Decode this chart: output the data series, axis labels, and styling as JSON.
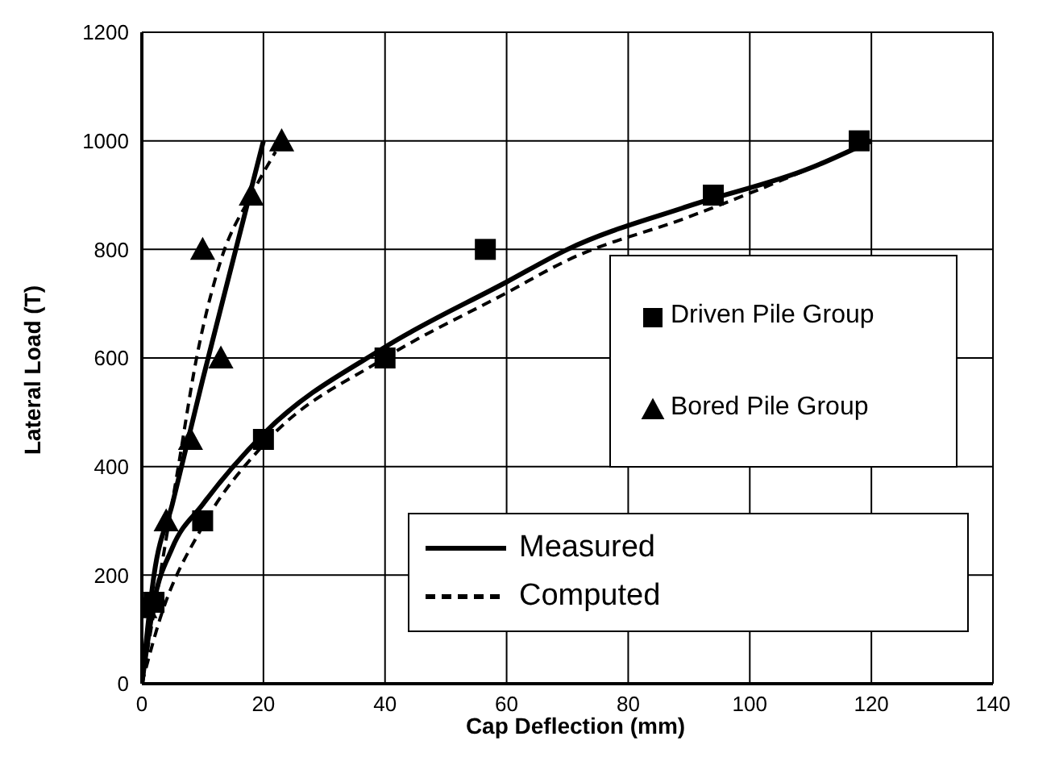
{
  "chart_data": {
    "type": "line",
    "xlabel": "Cap Deflection (mm)",
    "ylabel": "Lateral Load (T)",
    "xlim": [
      0,
      140
    ],
    "xticks": [
      0,
      20,
      40,
      60,
      80,
      100,
      120,
      140
    ],
    "ylim": [
      0,
      1200
    ],
    "yticks": [
      0,
      200,
      400,
      600,
      800,
      1000,
      1200
    ],
    "grid": true,
    "legend": "right",
    "series": [
      {
        "name": "Driven Pile Group",
        "type": "scatter",
        "marker": "square",
        "color": "#000000",
        "x": [
          2,
          10,
          20,
          40,
          56.5,
          94,
          118
        ],
        "values": [
          150,
          300,
          450,
          600,
          800,
          900,
          1000
        ]
      },
      {
        "name": "Bored Pile Group",
        "type": "scatter",
        "marker": "triangle",
        "color": "#000000",
        "x": [
          0.5,
          4,
          8,
          10,
          13,
          18,
          23
        ],
        "values": [
          140,
          300,
          450,
          800,
          600,
          900,
          1000
        ]
      },
      {
        "name": "Measured",
        "line_style": "solid",
        "marker": "none",
        "color": "#000000",
        "x": [
          0,
          2,
          5,
          10,
          20,
          40,
          60,
          70,
          90,
          110,
          120
        ],
        "values": [
          0,
          150,
          250,
          330,
          460,
          620,
          740,
          800,
          880,
          950,
          1000
        ]
      },
      {
        "name": "Computed",
        "line_style": "dashed",
        "marker": "none",
        "color": "#000000",
        "x": [
          0,
          3,
          10,
          20,
          40,
          60,
          70,
          90,
          110,
          120
        ],
        "values": [
          0,
          120,
          290,
          440,
          600,
          720,
          780,
          860,
          950,
          1000
        ]
      },
      {
        "line_style": "solid",
        "marker": "none",
        "color": "#000000",
        "x": [
          0,
          2,
          5,
          10,
          15,
          20
        ],
        "values": [
          0,
          200,
          330,
          560,
          780,
          1000
        ]
      },
      {
        "line_style": "dashed",
        "marker": "none",
        "color": "#000000",
        "x": [
          0,
          3,
          6,
          9,
          13,
          18,
          22
        ],
        "values": [
          0,
          200,
          400,
          600,
          780,
          900,
          980
        ]
      }
    ]
  }
}
